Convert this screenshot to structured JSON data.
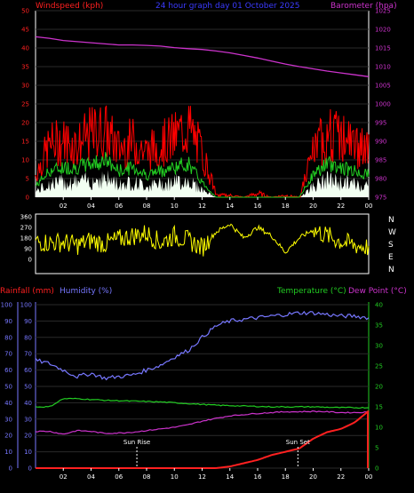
{
  "header": {
    "left_label": "Windspeed (kph)",
    "title": "24 hour graph day 01 October 2025",
    "right_label": "Barometer (hpa)"
  },
  "colors": {
    "background": "#000000",
    "axes": "#ffffff",
    "windspeed_header": "#ff2020",
    "title": "#3b3bff",
    "barometer": "#cc33cc",
    "gust": "#ff0000",
    "avg_wind": "#22cc22",
    "wind_fill": "#f2fff2",
    "wind_direction": "#ffff00",
    "rain": "#ff2020",
    "humidity": "#7777ff",
    "temperature": "#22cc22",
    "dew_point": "#cc33cc",
    "temp_axis": "#22cc22"
  },
  "time_ticks": [
    "02",
    "04",
    "06",
    "08",
    "10",
    "12",
    "14",
    "16",
    "18",
    "20",
    "22",
    "00"
  ],
  "chart_data": [
    {
      "type": "line",
      "name": "wind_barometer",
      "left_axis": {
        "label": "Windspeed (kph)",
        "ylim": [
          0,
          50
        ],
        "ticks": [
          0,
          5,
          10,
          15,
          20,
          25,
          30,
          35,
          40,
          45,
          50
        ]
      },
      "right_axis": {
        "label": "Barometer (hpa)",
        "ylim": [
          975,
          1025
        ],
        "ticks": [
          975,
          980,
          985,
          990,
          995,
          1000,
          1005,
          1010,
          1015,
          1020,
          1025
        ]
      },
      "x_hours": [
        0,
        1,
        2,
        3,
        4,
        5,
        6,
        7,
        8,
        9,
        10,
        11,
        12,
        13,
        14,
        15,
        16,
        17,
        18,
        19,
        20,
        21,
        22,
        23,
        24
      ],
      "series": [
        {
          "name": "Barometer",
          "axis": "right",
          "values": [
            1018,
            1017.6,
            1017,
            1016.7,
            1016.4,
            1016.1,
            1015.8,
            1015.8,
            1015.7,
            1015.5,
            1015.1,
            1014.8,
            1014.6,
            1014.2,
            1013.7,
            1013,
            1012.3,
            1011.5,
            1010.7,
            1010,
            1009.4,
            1008.8,
            1008.3,
            1007.8,
            1007.3
          ]
        },
        {
          "name": "Gust",
          "axis": "left",
          "values": [
            6,
            14,
            15,
            14,
            17,
            18,
            13,
            15,
            12,
            14,
            16,
            19,
            12,
            1,
            1,
            0,
            2,
            0,
            1,
            0,
            12,
            17,
            16,
            14,
            12
          ]
        },
        {
          "name": "Average",
          "axis": "left",
          "values": [
            3,
            7,
            8,
            8,
            9,
            10,
            7,
            8,
            6,
            7,
            8,
            9,
            4,
            0,
            0,
            0,
            0,
            0,
            0,
            0,
            6,
            9,
            8,
            7,
            6
          ]
        }
      ]
    },
    {
      "type": "line",
      "name": "wind_direction",
      "ylim": [
        0,
        360
      ],
      "y_ticks": [
        0,
        90,
        180,
        270,
        360
      ],
      "compass": [
        "N",
        "W",
        "S",
        "E",
        "N"
      ],
      "x_hours": [
        0,
        1,
        2,
        3,
        4,
        5,
        6,
        7,
        8,
        9,
        10,
        11,
        12,
        13,
        14,
        15,
        16,
        17,
        18,
        19,
        20,
        21,
        22,
        23,
        24
      ],
      "values": [
        150,
        140,
        145,
        120,
        160,
        130,
        170,
        200,
        220,
        140,
        200,
        160,
        100,
        230,
        300,
        180,
        270,
        200,
        60,
        180,
        250,
        200,
        150,
        120,
        100
      ]
    },
    {
      "type": "line",
      "name": "rain_humidity_temperature",
      "left_labels": {
        "rainfall": "Rainfall (mm)",
        "humidity": "Humidity (%)"
      },
      "right_labels": {
        "temperature": "Temperature (°C)",
        "dew_point": "Dew Point (°C)"
      },
      "rain_axis": {
        "ylim": [
          0,
          100
        ],
        "ticks": [
          0,
          10,
          20,
          30,
          40,
          50,
          60,
          70,
          80,
          90,
          100
        ]
      },
      "humidity_axis": {
        "ylim": [
          0,
          100
        ],
        "ticks": [
          0,
          10,
          20,
          30,
          40,
          50,
          60,
          70,
          80,
          90,
          100
        ]
      },
      "temp_axis": {
        "ylim": [
          0,
          40
        ],
        "ticks": [
          0,
          5,
          10,
          15,
          20,
          25,
          30,
          35,
          40
        ]
      },
      "x_hours": [
        0,
        1,
        2,
        3,
        4,
        5,
        6,
        7,
        8,
        9,
        10,
        11,
        12,
        13,
        14,
        15,
        16,
        17,
        18,
        19,
        20,
        21,
        22,
        23,
        24
      ],
      "series": [
        {
          "name": "Humidity",
          "axis": "humidity",
          "values": [
            66,
            64,
            60,
            56,
            58,
            55,
            56,
            57,
            60,
            63,
            68,
            72,
            80,
            87,
            90,
            91,
            92,
            93,
            94,
            95,
            95,
            94,
            93,
            93,
            92
          ]
        },
        {
          "name": "Temperature",
          "axis": "temp",
          "values": [
            15,
            15,
            17,
            17,
            16.8,
            16.6,
            16.5,
            16.4,
            16.3,
            16.2,
            16,
            15.8,
            15.6,
            15.4,
            15.3,
            15.2,
            15.1,
            15,
            15,
            15,
            15,
            14.9,
            14.8,
            14.8,
            14.8
          ]
        },
        {
          "name": "Dew Point",
          "axis": "temp",
          "values": [
            9,
            9,
            8.3,
            9.2,
            9,
            8.5,
            8.6,
            8.8,
            9.2,
            9.6,
            10,
            10.6,
            11.5,
            12.2,
            12.8,
            13.1,
            13.4,
            13.6,
            13.8,
            13.8,
            13.9,
            13.8,
            13.6,
            13.6,
            13.7
          ]
        },
        {
          "name": "Rainfall",
          "axis": "rain",
          "values": [
            0,
            0,
            0,
            0,
            0,
            0,
            0,
            0,
            0,
            0,
            0,
            0,
            0,
            0,
            1,
            3,
            5,
            8,
            10,
            12,
            18,
            22,
            24,
            28,
            35
          ]
        }
      ],
      "annotations": [
        {
          "text": "Sun Rise",
          "hour": 7.3
        },
        {
          "text": "Sun Set",
          "hour": 18.9
        }
      ]
    }
  ]
}
